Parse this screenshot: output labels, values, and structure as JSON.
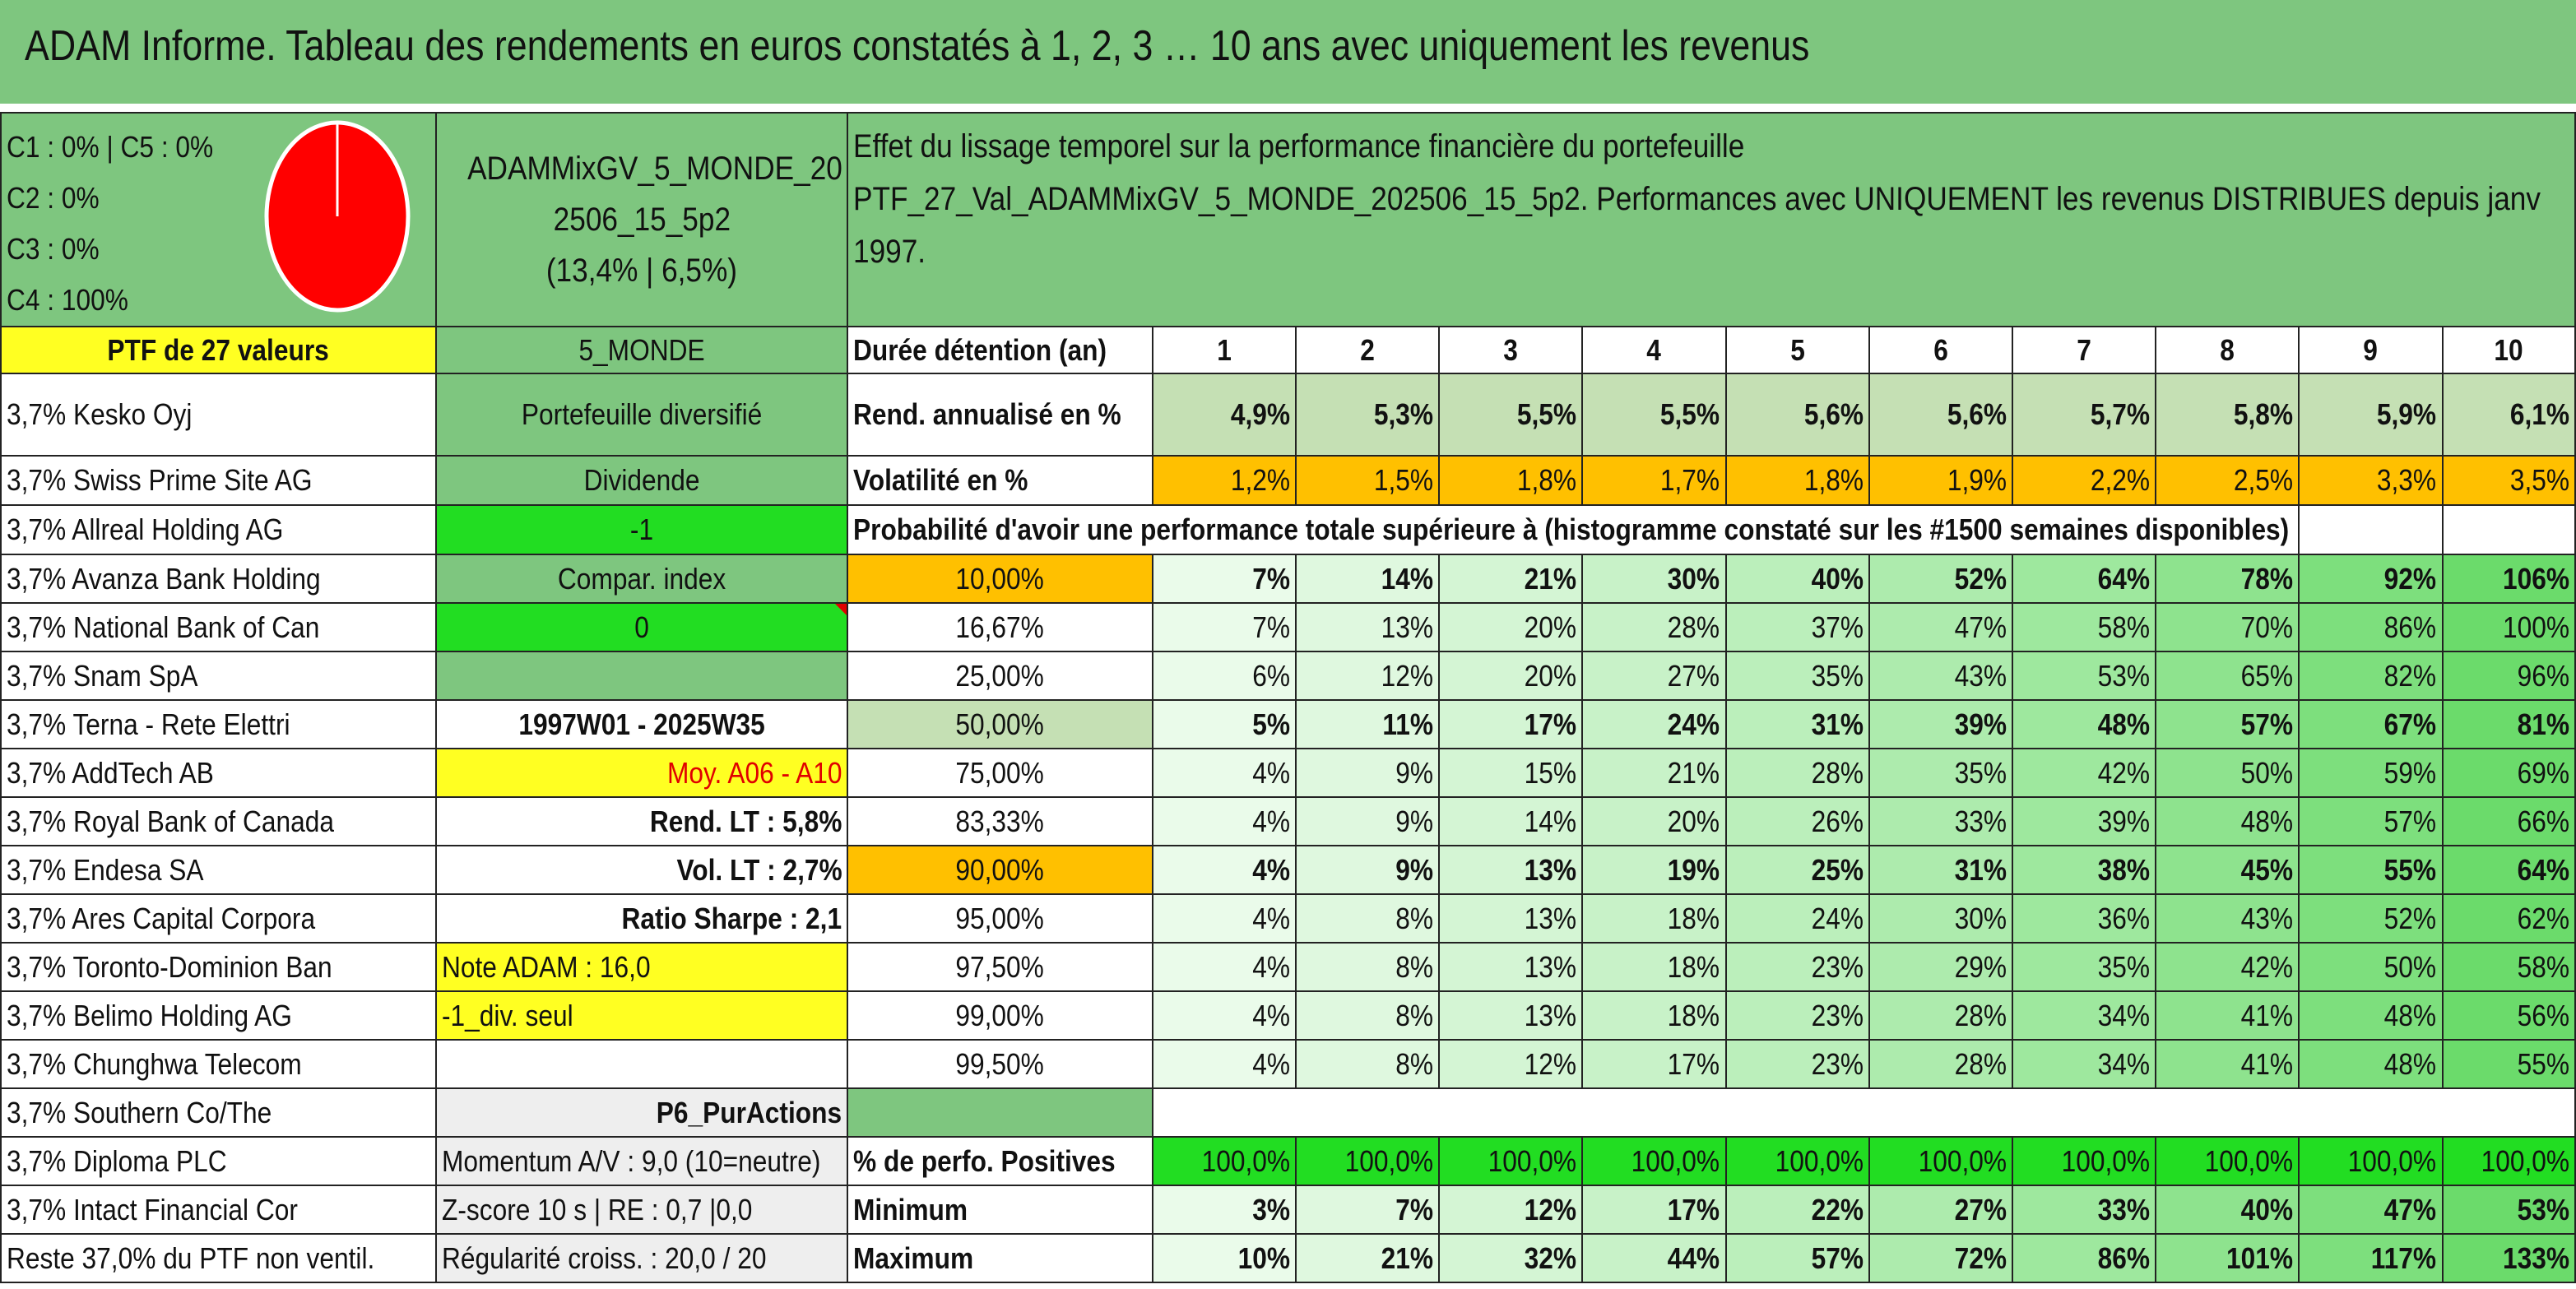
{
  "title": "ADAM Informe. Tableau des rendements en euros constatés à 1, 2, 3 … 10 ans avec uniquement les revenus",
  "allocation": [
    "C1 : 0% | C5 : 0%",
    "C2 : 0%",
    "C3 : 0%",
    "C4 : 100%"
  ],
  "pie": {
    "slices": [
      {
        "label": "C4",
        "value": 100,
        "color": "#ff0000"
      }
    ]
  },
  "portfolio": {
    "name_line1": "ADAMMixGV_5_MONDE_20",
    "name_line2": "2506_15_5p2",
    "name_line3": "(13,4% | 6,5%)"
  },
  "description": {
    "line1": "Effet du lissage temporel sur la performance financière du portefeuille",
    "line2": "PTF_27_Val_ADAMMixGV_5_MONDE_202506_15_5p2. Performances avec UNIQUEMENT les revenus DISTRIBUES depuis janv",
    "line3": "1997."
  },
  "ptf_header": "PTF de 27 valeurs",
  "zone": "5_MONDE",
  "holdings": [
    "3,7% Kesko Oyj",
    "3,7% Swiss Prime Site AG",
    "3,7% Allreal Holding AG",
    "3,7% Avanza Bank Holding",
    "3,7% National Bank of Can",
    "3,7% Snam SpA",
    "3,7% Terna - Rete Elettri",
    "3,7% AddTech AB",
    "3,7% Royal Bank of Canada",
    "3,7% Endesa SA",
    "3,7% Ares Capital Corpora",
    "3,7% Toronto-Dominion Ban",
    "3,7% Belimo Holding AG",
    "3,7% Chunghwa Telecom",
    "3,7% Southern Co/The",
    "3,7% Diploma PLC",
    "3,7% Intact Financial Cor",
    "Reste 37,0% du PTF non ventil."
  ],
  "info": {
    "type": "Portefeuille diversifié",
    "dividende": "Dividende",
    "minus_one": "-1",
    "compar": "Compar. index",
    "zero": "0",
    "period": "1997W01 - 2025W35",
    "moy": "Moy. A06 - A10",
    "rend_lt": "Rend. LT : 5,8%",
    "vol_lt": "Vol. LT : 2,7%",
    "sharpe": "Ratio Sharpe : 2,1",
    "note": "Note ADAM : 16,0",
    "div_seul": "-1_div. seul",
    "strategy": "P6_PurActions",
    "momentum": "Momentum A/V : 9,0 (10=neutre)",
    "zscore": "Z-score 10 s | RE : 0,7 |0,0",
    "regularite": "Régularité croiss. : 20,0 / 20"
  },
  "table": {
    "duration_label": "Durée détention (an)",
    "years": [
      "1",
      "2",
      "3",
      "4",
      "5",
      "6",
      "7",
      "8",
      "9",
      "10"
    ],
    "rend_label": "Rend. annualisé en %",
    "rend": [
      "4,9%",
      "5,3%",
      "5,5%",
      "5,5%",
      "5,6%",
      "5,6%",
      "5,7%",
      "5,8%",
      "5,9%",
      "6,1%"
    ],
    "vol_label": "Volatilité en %",
    "vol": [
      "1,2%",
      "1,5%",
      "1,8%",
      "1,7%",
      "1,8%",
      "1,9%",
      "2,2%",
      "2,5%",
      "3,3%",
      "3,5%"
    ],
    "prob_header": "Probabilité d'avoir une performance totale supérieure à (histogramme constaté sur les #1500 semaines disponibles)",
    "prob_rows": [
      {
        "p": "10,00%",
        "v": [
          "7%",
          "14%",
          "21%",
          "30%",
          "40%",
          "52%",
          "64%",
          "78%",
          "92%",
          "106%"
        ]
      },
      {
        "p": "16,67%",
        "v": [
          "7%",
          "13%",
          "20%",
          "28%",
          "37%",
          "47%",
          "58%",
          "70%",
          "86%",
          "100%"
        ]
      },
      {
        "p": "25,00%",
        "v": [
          "6%",
          "12%",
          "20%",
          "27%",
          "35%",
          "43%",
          "53%",
          "65%",
          "82%",
          "96%"
        ]
      },
      {
        "p": "50,00%",
        "v": [
          "5%",
          "11%",
          "17%",
          "24%",
          "31%",
          "39%",
          "48%",
          "57%",
          "67%",
          "81%"
        ]
      },
      {
        "p": "75,00%",
        "v": [
          "4%",
          "9%",
          "15%",
          "21%",
          "28%",
          "35%",
          "42%",
          "50%",
          "59%",
          "69%"
        ]
      },
      {
        "p": "83,33%",
        "v": [
          "4%",
          "9%",
          "14%",
          "20%",
          "26%",
          "33%",
          "39%",
          "48%",
          "57%",
          "66%"
        ]
      },
      {
        "p": "90,00%",
        "v": [
          "4%",
          "9%",
          "13%",
          "19%",
          "25%",
          "31%",
          "38%",
          "45%",
          "55%",
          "64%"
        ]
      },
      {
        "p": "95,00%",
        "v": [
          "4%",
          "8%",
          "13%",
          "18%",
          "24%",
          "30%",
          "36%",
          "43%",
          "52%",
          "62%"
        ]
      },
      {
        "p": "97,50%",
        "v": [
          "4%",
          "8%",
          "13%",
          "18%",
          "23%",
          "29%",
          "35%",
          "42%",
          "50%",
          "58%"
        ]
      },
      {
        "p": "99,00%",
        "v": [
          "4%",
          "8%",
          "13%",
          "18%",
          "23%",
          "28%",
          "34%",
          "41%",
          "48%",
          "56%"
        ]
      },
      {
        "p": "99,50%",
        "v": [
          "4%",
          "8%",
          "12%",
          "17%",
          "23%",
          "28%",
          "34%",
          "41%",
          "48%",
          "55%"
        ]
      }
    ],
    "pos_label": "% de perfo. Positives",
    "pos": [
      "100,0%",
      "100,0%",
      "100,0%",
      "100,0%",
      "100,0%",
      "100,0%",
      "100,0%",
      "100,0%",
      "100,0%",
      "100,0%"
    ],
    "min_label": "Minimum",
    "min": [
      "3%",
      "7%",
      "12%",
      "17%",
      "22%",
      "27%",
      "33%",
      "40%",
      "47%",
      "53%"
    ],
    "max_label": "Maximum",
    "max": [
      "10%",
      "21%",
      "32%",
      "44%",
      "57%",
      "72%",
      "86%",
      "101%",
      "117%",
      "133%"
    ]
  },
  "colors": {
    "header_green": "#7ec67f",
    "bright_green": "#22dd22",
    "yellow": "#ffff22",
    "orange": "#ffc000",
    "light_green": "#c5e0b4",
    "red_text": "#e00000"
  }
}
